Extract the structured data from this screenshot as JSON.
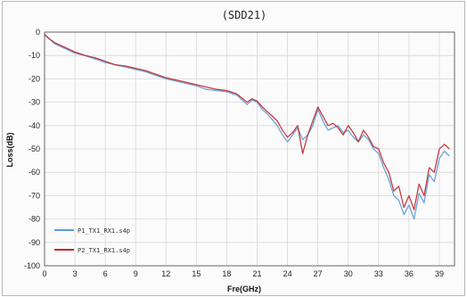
{
  "chart_data": {
    "type": "line",
    "title": "(SDD21)",
    "xlabel": "Fre(GHz)",
    "ylabel": "Loss(dB)",
    "xlim": [
      0,
      40.5
    ],
    "ylim": [
      -100,
      0
    ],
    "xticks": [
      0,
      3,
      6,
      9,
      12,
      15,
      18,
      21,
      24,
      27,
      30,
      33,
      36,
      39
    ],
    "yticks": [
      0,
      -10,
      -20,
      -30,
      -40,
      -50,
      -60,
      -70,
      -80,
      -90,
      -100
    ],
    "grid": true,
    "legend_position": "bottom-left",
    "series": [
      {
        "name": "P1_TX1_RX1.s4p",
        "color": "#5b9bd5",
        "x": [
          0,
          0.5,
          1,
          2,
          3,
          4,
          5,
          6,
          7,
          8,
          9,
          10,
          11,
          12,
          13,
          14,
          15,
          16,
          17,
          18,
          19,
          20,
          20.5,
          21,
          21.5,
          22,
          23,
          23.5,
          24,
          24.5,
          25,
          25.5,
          26,
          26.5,
          27,
          27.5,
          28,
          28.5,
          29,
          29.5,
          30,
          30.5,
          31,
          31.5,
          32,
          32.5,
          33,
          33.5,
          34,
          34.5,
          35,
          35.5,
          36,
          36.5,
          37,
          37.5,
          38,
          38.5,
          39,
          39.5,
          40
        ],
        "values": [
          -1,
          -3,
          -5,
          -7,
          -9,
          -10,
          -11.5,
          -13,
          -14,
          -15,
          -16,
          -17,
          -18.5,
          -20,
          -21,
          -22,
          -23,
          -24.5,
          -25,
          -25.5,
          -27,
          -31,
          -29,
          -30,
          -33,
          -35,
          -40,
          -44,
          -47,
          -44,
          -41,
          -46,
          -44,
          -40,
          -33,
          -38,
          -42,
          -41,
          -40,
          -43,
          -42,
          -45,
          -47,
          -44,
          -46,
          -50,
          -52,
          -58,
          -63,
          -70,
          -72,
          -78,
          -74,
          -80,
          -69,
          -73,
          -61,
          -64,
          -54,
          -51,
          -53
        ]
      },
      {
        "name": "P2_TX1_RX1.s4p",
        "color": "#c0282d",
        "x": [
          0,
          0.5,
          1,
          2,
          3,
          4,
          5,
          6,
          7,
          8,
          9,
          10,
          11,
          12,
          13,
          14,
          15,
          16,
          17,
          18,
          19,
          20,
          20.5,
          21,
          21.5,
          22,
          23,
          23.5,
          24,
          24.5,
          25,
          25.5,
          26,
          26.5,
          27,
          27.5,
          28,
          28.5,
          29,
          29.5,
          30,
          30.5,
          31,
          31.5,
          32,
          32.5,
          33,
          33.5,
          34,
          34.5,
          35,
          35.5,
          36,
          36.5,
          37,
          37.5,
          38,
          38.5,
          39,
          39.5,
          40
        ],
        "values": [
          -1,
          -3,
          -4.5,
          -6.5,
          -8.5,
          -10,
          -11,
          -12.5,
          -14,
          -14.5,
          -15.5,
          -16.5,
          -18,
          -19.5,
          -20.5,
          -21.5,
          -22.5,
          -23.5,
          -24.5,
          -25,
          -26.5,
          -30,
          -28.5,
          -29.5,
          -32,
          -34,
          -38,
          -42,
          -45,
          -43,
          -40,
          -52,
          -44,
          -38,
          -32,
          -36,
          -40,
          -39,
          -41,
          -44,
          -40,
          -43,
          -47,
          -42,
          -45,
          -49,
          -50,
          -56,
          -60,
          -68,
          -66,
          -75,
          -70,
          -76,
          -65,
          -70,
          -58,
          -60,
          -50,
          -48,
          -50
        ]
      }
    ]
  }
}
